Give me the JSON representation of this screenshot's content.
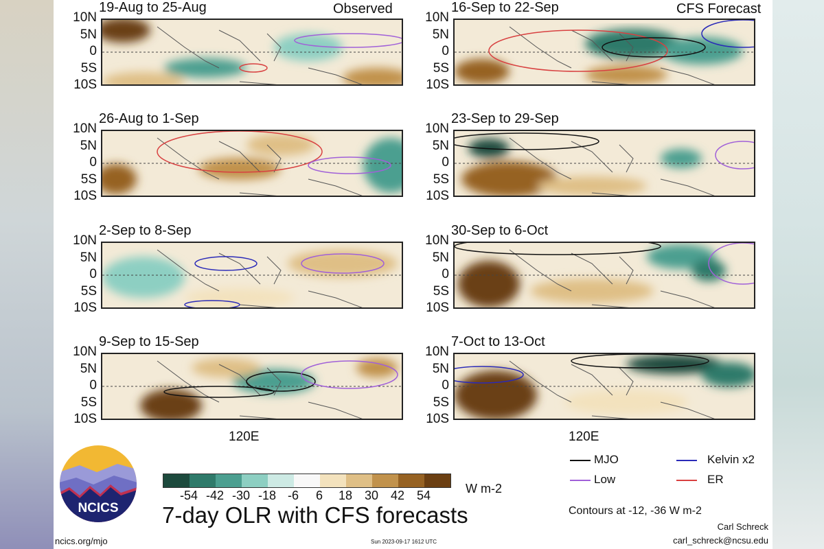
{
  "left_column": {
    "header": "Observed",
    "panels": [
      "19-Aug to 25-Aug",
      "26-Aug to 1-Sep",
      "2-Sep to 8-Sep",
      "9-Sep to 15-Sep"
    ]
  },
  "right_column": {
    "header": "CFS Forecast",
    "panels": [
      "16-Sep to 22-Sep",
      "23-Sep to 29-Sep",
      "30-Sep to 6-Oct",
      "7-Oct to 13-Oct"
    ]
  },
  "lat_labels": [
    "10N",
    "5N",
    "0",
    "5S",
    "10S"
  ],
  "lon_label": "120E",
  "colorbar": {
    "labels": [
      "-54",
      "-42",
      "-30",
      "-18",
      "-6",
      "6",
      "18",
      "30",
      "42",
      "54"
    ],
    "colors": [
      "#1d4a3d",
      "#2f7a6a",
      "#4c9f90",
      "#8dcfc2",
      "#cdeae4",
      "#f8f8f8",
      "#f3e2bd",
      "#dfbf86",
      "#c1924c",
      "#966223",
      "#6b3f12"
    ],
    "units": "W m-2"
  },
  "title": "7-day OLR with CFS forecasts",
  "legend": {
    "items": [
      {
        "label": "MJO",
        "color": "#111111"
      },
      {
        "label": "Kelvin x2",
        "color": "#2a2ab8"
      },
      {
        "label": "Low",
        "color": "#a060d8"
      },
      {
        "label": "ER",
        "color": "#d84040"
      }
    ],
    "contours": "Contours at -12, -36 W m-2"
  },
  "logo": {
    "text": "NCICS"
  },
  "footer": {
    "url": "ncics.org/mjo",
    "timestamp": "Sun 2023-09-17 1612 UTC",
    "author": "Carl Schreck",
    "email": "carl_schreck@ncsu.edu"
  }
}
